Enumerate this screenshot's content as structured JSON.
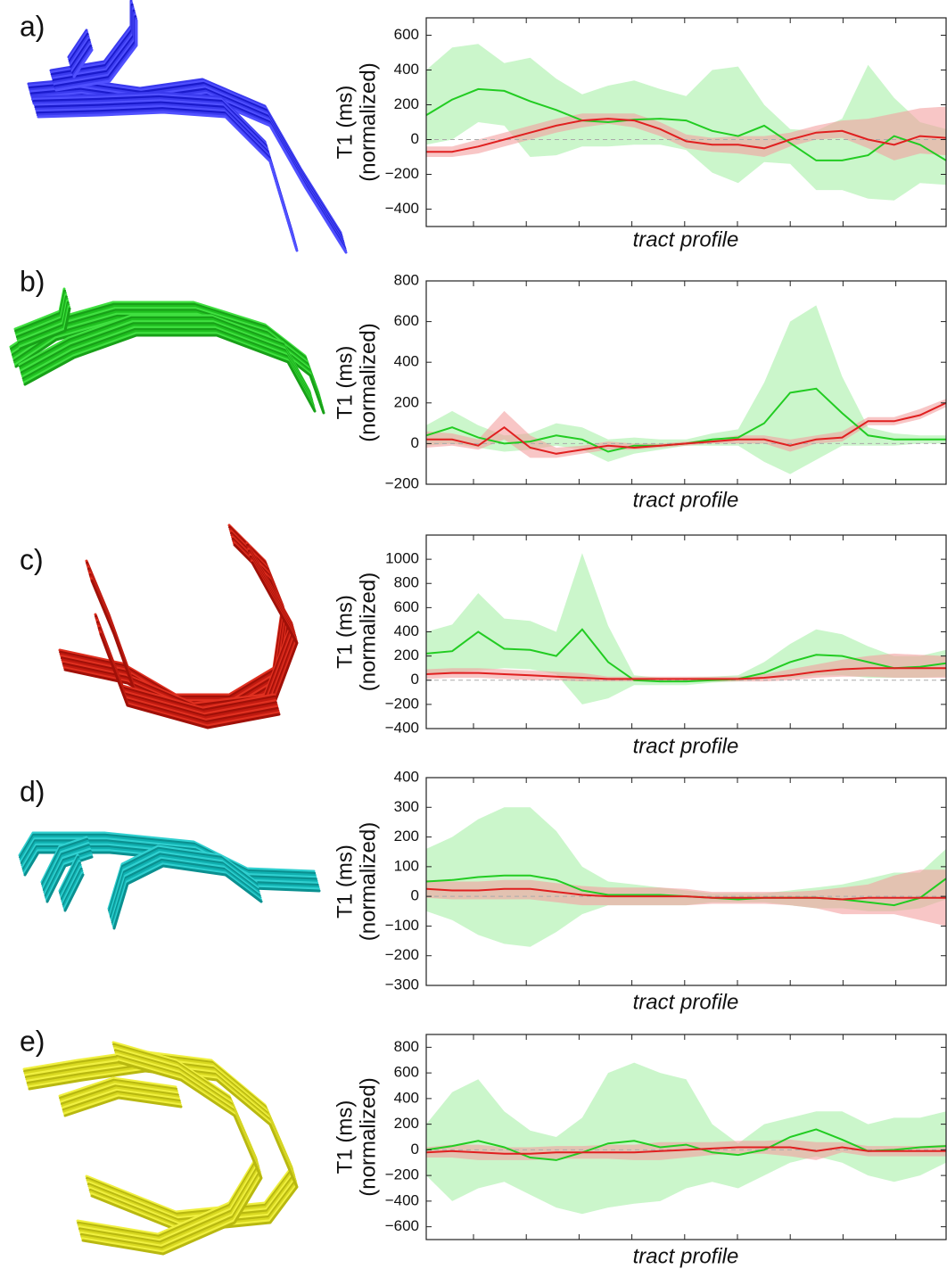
{
  "chart_data": [
    {
      "type": "line",
      "panel_label": "a)",
      "xlabel": "tract profile",
      "ylabel": [
        "T1 (ms)",
        "(normalized)"
      ],
      "x": [
        0,
        5,
        10,
        15,
        20,
        25,
        30,
        35,
        40,
        45,
        50,
        55,
        60,
        65,
        70,
        75,
        80,
        85,
        90,
        95,
        100
      ],
      "xlim": [
        0,
        100
      ],
      "ylim": [
        -500,
        700
      ],
      "yticks": [
        {
          "value": -400,
          "label": "−400"
        },
        {
          "value": -200,
          "label": "−200"
        },
        0,
        200,
        400,
        600
      ],
      "series": [
        {
          "color": "#22cc22",
          "band_color": "#a8f0a8",
          "values": [
            140,
            230,
            290,
            280,
            220,
            170,
            110,
            100,
            115,
            120,
            110,
            50,
            20,
            80,
            -20,
            -120,
            -120,
            -90,
            20,
            -30,
            -120
          ],
          "lower": [
            -30,
            0,
            100,
            80,
            -100,
            -90,
            -40,
            -40,
            -30,
            -30,
            -60,
            -190,
            -250,
            -130,
            -140,
            -290,
            -290,
            -340,
            -350,
            -250,
            -260
          ],
          "upper": [
            400,
            530,
            550,
            440,
            470,
            350,
            260,
            310,
            340,
            290,
            250,
            400,
            420,
            200,
            60,
            50,
            120,
            430,
            240,
            100,
            60
          ]
        },
        {
          "color": "#e02020",
          "band_color": "#f4a0a0",
          "values": [
            -70,
            -70,
            -40,
            0,
            40,
            80,
            110,
            120,
            110,
            60,
            -10,
            -30,
            -30,
            -50,
            0,
            40,
            50,
            0,
            -30,
            20,
            10
          ],
          "lower": [
            -100,
            -100,
            -80,
            -40,
            0,
            40,
            70,
            90,
            70,
            20,
            -50,
            -70,
            -80,
            -100,
            -40,
            0,
            10,
            -50,
            -120,
            -80,
            -90
          ],
          "upper": [
            -40,
            -40,
            0,
            40,
            80,
            120,
            150,
            150,
            150,
            100,
            30,
            10,
            20,
            20,
            40,
            80,
            110,
            120,
            150,
            180,
            190
          ]
        }
      ]
    },
    {
      "type": "line",
      "panel_label": "b)",
      "xlabel": "tract profile",
      "ylabel": [
        "T1 (ms)",
        "(normalized)"
      ],
      "x": [
        0,
        5,
        10,
        15,
        20,
        25,
        30,
        35,
        40,
        45,
        50,
        55,
        60,
        65,
        70,
        75,
        80,
        85,
        90,
        95,
        100
      ],
      "xlim": [
        0,
        100
      ],
      "ylim": [
        -200,
        800
      ],
      "yticks": [
        {
          "value": -200,
          "label": "−200"
        },
        0,
        200,
        400,
        600,
        800
      ],
      "series": [
        {
          "color": "#22cc22",
          "band_color": "#a8f0a8",
          "values": [
            40,
            80,
            30,
            0,
            10,
            40,
            20,
            -40,
            -10,
            -10,
            0,
            20,
            30,
            100,
            250,
            270,
            150,
            40,
            20,
            20,
            20
          ],
          "lower": [
            -10,
            0,
            -20,
            -40,
            -30,
            -10,
            -30,
            -90,
            -50,
            -30,
            -10,
            -10,
            -10,
            -90,
            -150,
            -80,
            -10,
            -10,
            -10,
            0,
            0
          ],
          "upper": [
            90,
            160,
            90,
            40,
            50,
            100,
            80,
            20,
            30,
            20,
            20,
            50,
            70,
            300,
            600,
            680,
            330,
            80,
            50,
            40,
            40
          ]
        },
        {
          "color": "#e02020",
          "band_color": "#f4a0a0",
          "values": [
            20,
            20,
            -10,
            80,
            -20,
            -50,
            -30,
            -10,
            -20,
            -10,
            0,
            10,
            20,
            20,
            -10,
            20,
            30,
            110,
            110,
            140,
            200
          ],
          "lower": [
            -20,
            -10,
            -30,
            20,
            -70,
            -70,
            -50,
            -30,
            -30,
            -20,
            -10,
            0,
            0,
            0,
            -40,
            0,
            10,
            90,
            90,
            120,
            180
          ],
          "upper": [
            60,
            50,
            20,
            160,
            40,
            -20,
            -10,
            10,
            0,
            0,
            10,
            20,
            40,
            40,
            20,
            40,
            60,
            130,
            130,
            170,
            220
          ]
        }
      ]
    },
    {
      "type": "line",
      "panel_label": "c)",
      "xlabel": "tract profile",
      "ylabel": [
        "T1 (ms)",
        "(normalized)"
      ],
      "x": [
        0,
        5,
        10,
        15,
        20,
        25,
        30,
        35,
        40,
        45,
        50,
        55,
        60,
        65,
        70,
        75,
        80,
        85,
        90,
        95,
        100
      ],
      "xlim": [
        0,
        100
      ],
      "ylim": [
        -400,
        1200
      ],
      "yticks": [
        {
          "value": -400,
          "label": "−400"
        },
        {
          "value": -200,
          "label": "−200"
        },
        0,
        200,
        400,
        600,
        800,
        1000
      ],
      "series": [
        {
          "color": "#22cc22",
          "band_color": "#a8f0a8",
          "values": [
            220,
            240,
            400,
            260,
            250,
            200,
            420,
            150,
            0,
            -10,
            -10,
            0,
            10,
            60,
            150,
            210,
            200,
            150,
            100,
            110,
            140
          ],
          "lower": [
            60,
            60,
            80,
            100,
            90,
            50,
            -200,
            -150,
            -40,
            -40,
            -40,
            -20,
            -10,
            10,
            20,
            40,
            40,
            20,
            20,
            20,
            30
          ],
          "upper": [
            400,
            460,
            720,
            510,
            490,
            400,
            1050,
            450,
            40,
            20,
            20,
            30,
            40,
            150,
            300,
            420,
            380,
            280,
            200,
            200,
            250
          ]
        },
        {
          "color": "#e02020",
          "band_color": "#f4a0a0",
          "values": [
            50,
            60,
            60,
            50,
            40,
            30,
            20,
            10,
            10,
            10,
            10,
            10,
            10,
            20,
            40,
            70,
            90,
            100,
            100,
            100,
            100
          ],
          "lower": [
            10,
            20,
            20,
            10,
            0,
            0,
            -10,
            -10,
            -10,
            -10,
            -10,
            -10,
            -10,
            -10,
            0,
            20,
            30,
            30,
            20,
            20,
            20
          ],
          "upper": [
            90,
            100,
            100,
            90,
            80,
            70,
            60,
            30,
            30,
            30,
            30,
            30,
            30,
            50,
            90,
            130,
            170,
            200,
            220,
            210,
            200
          ]
        }
      ]
    },
    {
      "type": "line",
      "panel_label": "d)",
      "xlabel": "tract profile",
      "ylabel": [
        "T1 (ms)",
        "(normalized)"
      ],
      "x": [
        0,
        5,
        10,
        15,
        20,
        25,
        30,
        35,
        40,
        45,
        50,
        55,
        60,
        65,
        70,
        75,
        80,
        85,
        90,
        95,
        100
      ],
      "xlim": [
        0,
        100
      ],
      "ylim": [
        -300,
        400
      ],
      "yticks": [
        {
          "value": -300,
          "label": "−300"
        },
        {
          "value": -200,
          "label": "−200"
        },
        {
          "value": -100,
          "label": "−100"
        },
        0,
        100,
        200,
        300,
        400
      ],
      "series": [
        {
          "color": "#22cc22",
          "band_color": "#a8f0a8",
          "values": [
            50,
            55,
            65,
            70,
            70,
            55,
            20,
            5,
            5,
            5,
            0,
            -5,
            -10,
            -5,
            -5,
            -5,
            -10,
            -20,
            -30,
            -5,
            60
          ],
          "lower": [
            -50,
            -80,
            -130,
            -160,
            -170,
            -120,
            -60,
            -30,
            -30,
            -30,
            -30,
            -20,
            -20,
            -20,
            -30,
            -40,
            -40,
            -50,
            -50,
            -40,
            -10
          ],
          "upper": [
            160,
            200,
            260,
            300,
            300,
            220,
            100,
            50,
            40,
            30,
            20,
            10,
            10,
            10,
            20,
            30,
            40,
            60,
            80,
            80,
            160
          ]
        },
        {
          "color": "#e02020",
          "band_color": "#f4a0a0",
          "values": [
            25,
            20,
            20,
            25,
            25,
            15,
            5,
            0,
            0,
            0,
            0,
            -5,
            -5,
            -5,
            -5,
            -5,
            -10,
            -5,
            -5,
            -5,
            -5
          ],
          "lower": [
            -5,
            -10,
            -10,
            -10,
            -10,
            -20,
            -30,
            -30,
            -30,
            -30,
            -30,
            -25,
            -25,
            -25,
            -30,
            -40,
            -60,
            -60,
            -60,
            -80,
            -100
          ],
          "upper": [
            55,
            50,
            50,
            55,
            55,
            45,
            35,
            30,
            30,
            30,
            25,
            15,
            15,
            15,
            15,
            20,
            30,
            40,
            70,
            90,
            90
          ]
        }
      ]
    },
    {
      "type": "line",
      "panel_label": "e)",
      "xlabel": "tract profile",
      "ylabel": [
        "T1 (ms)",
        "(normalized)"
      ],
      "x": [
        0,
        5,
        10,
        15,
        20,
        25,
        30,
        35,
        40,
        45,
        50,
        55,
        60,
        65,
        70,
        75,
        80,
        85,
        90,
        95,
        100
      ],
      "xlim": [
        0,
        100
      ],
      "ylim": [
        -700,
        900
      ],
      "yticks": [
        {
          "value": -600,
          "label": "−600"
        },
        {
          "value": -400,
          "label": "−400"
        },
        {
          "value": -200,
          "label": "−200"
        },
        0,
        200,
        400,
        600,
        800
      ],
      "series": [
        {
          "color": "#22cc22",
          "band_color": "#a8f0a8",
          "values": [
            0,
            30,
            70,
            20,
            -60,
            -80,
            -20,
            50,
            70,
            20,
            40,
            -20,
            -40,
            0,
            100,
            160,
            80,
            -10,
            0,
            20,
            30
          ],
          "lower": [
            -200,
            -400,
            -300,
            -250,
            -350,
            -450,
            -500,
            -450,
            -420,
            -400,
            -300,
            -250,
            -300,
            -200,
            -100,
            -50,
            -100,
            -200,
            -250,
            -200,
            -100
          ],
          "upper": [
            200,
            450,
            550,
            300,
            150,
            100,
            250,
            600,
            680,
            600,
            550,
            200,
            50,
            200,
            250,
            300,
            300,
            200,
            250,
            250,
            300
          ]
        },
        {
          "color": "#e02020",
          "band_color": "#f4a0a0",
          "values": [
            -20,
            -10,
            -20,
            -30,
            -30,
            -20,
            -20,
            -20,
            -20,
            -10,
            0,
            10,
            20,
            20,
            20,
            -10,
            20,
            -10,
            -10,
            -10,
            -10
          ],
          "lower": [
            -60,
            -60,
            -80,
            -80,
            -80,
            -70,
            -70,
            -70,
            -80,
            -80,
            -60,
            -40,
            -30,
            -30,
            -50,
            -80,
            -20,
            -50,
            -50,
            -50,
            -50
          ],
          "upper": [
            20,
            40,
            40,
            20,
            20,
            30,
            30,
            40,
            40,
            60,
            60,
            60,
            70,
            70,
            80,
            60,
            60,
            30,
            30,
            30,
            40
          ]
        }
      ]
    }
  ]
}
